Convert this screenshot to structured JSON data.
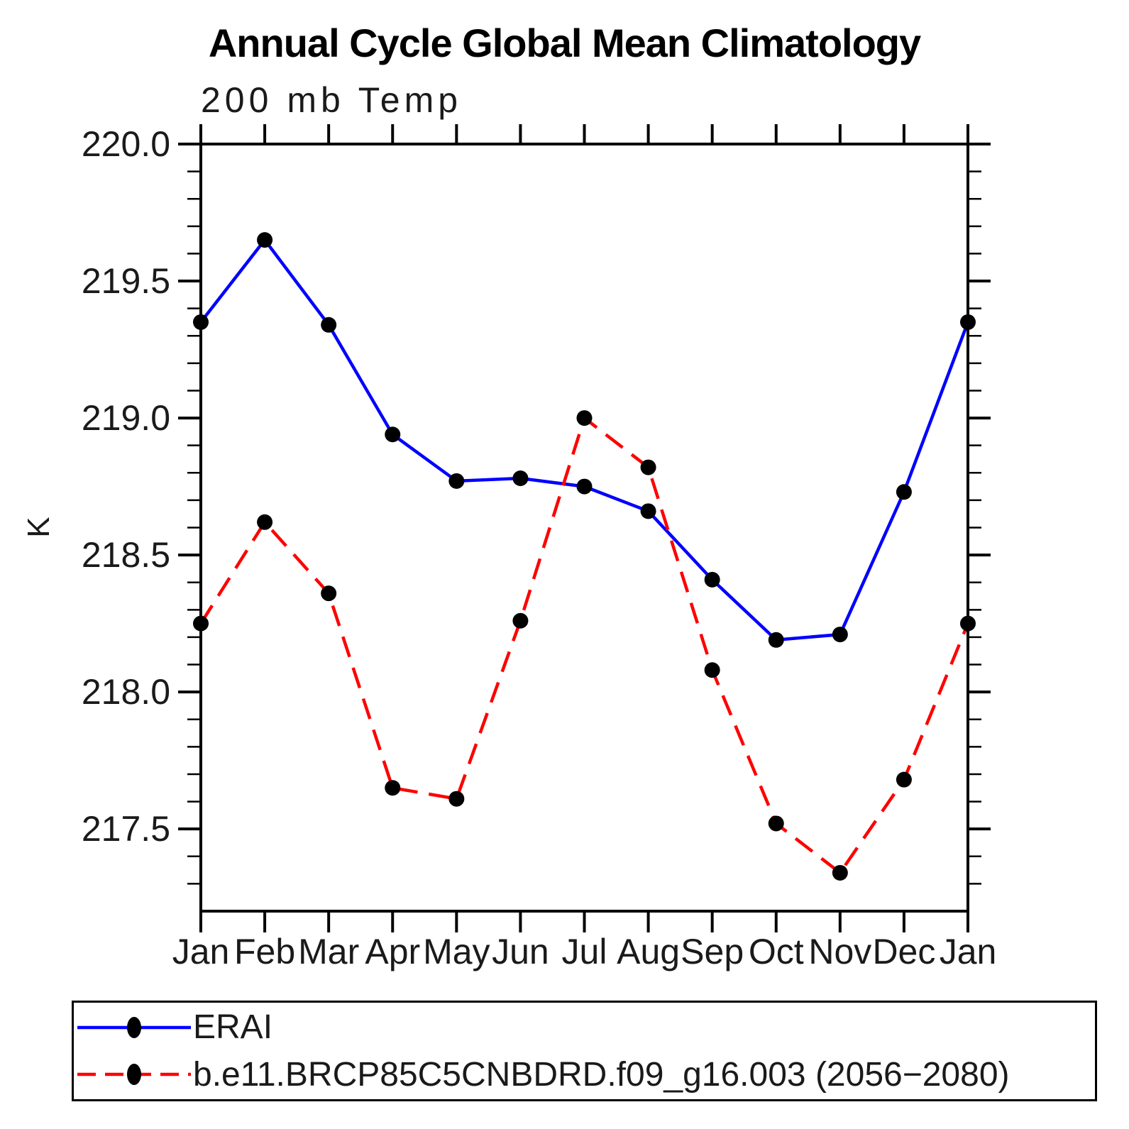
{
  "page": {
    "title": "Annual Cycle Global Mean Climatology",
    "subtitle": "200 mb Temp"
  },
  "chart_data": {
    "type": "line",
    "title": "Annual Cycle Global Mean Climatology",
    "subtitle": "200 mb Temp",
    "xlabel": "",
    "ylabel": "K",
    "categories": [
      "Jan",
      "Feb",
      "Mar",
      "Apr",
      "May",
      "Jun",
      "Jul",
      "Aug",
      "Sep",
      "Oct",
      "Nov",
      "Dec",
      "Jan"
    ],
    "series": [
      {
        "name": "ERAI",
        "color": "#0000ff",
        "line_style": "solid",
        "marker": "circle",
        "marker_color": "#000000",
        "values": [
          219.35,
          219.65,
          219.34,
          218.94,
          218.77,
          218.78,
          218.75,
          218.66,
          218.41,
          218.19,
          218.21,
          218.73,
          219.35
        ]
      },
      {
        "name": "b.e11.BRCP85C5CNBDRD.f09_g16.003 (2056−2080)",
        "color": "#ff0000",
        "line_style": "dashed",
        "marker": "circle",
        "marker_color": "#000000",
        "values": [
          218.25,
          218.62,
          218.36,
          217.65,
          217.61,
          218.26,
          219.0,
          218.82,
          218.08,
          217.52,
          217.34,
          217.68,
          218.25
        ]
      }
    ],
    "ylim": [
      217.2,
      220.0
    ],
    "y_major_tick_step": 0.5,
    "y_minor_tick_step": 0.1,
    "y_major_ticks": [
      217.5,
      218.0,
      218.5,
      219.0,
      219.5,
      220.0
    ],
    "grid": false,
    "legend_position": "bottom-box"
  }
}
